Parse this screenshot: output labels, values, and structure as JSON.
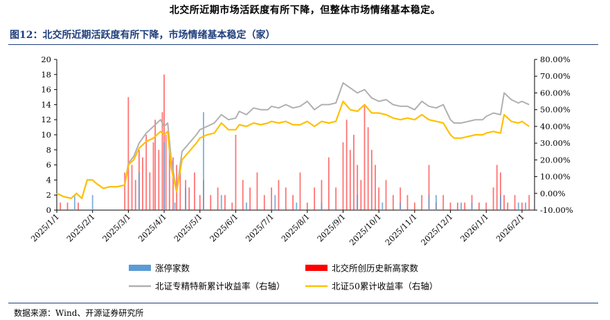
{
  "header": {
    "top_text": "北交所近期市场活跃度有所下降，但整体市场情绪基本稳定。",
    "figure_title": "图12：北交所近期活跃度有所下降，市场情绪基本稳定（家）",
    "source": "数据来源：Wind、开源证券研究所"
  },
  "colors": {
    "limit_up": "#5b9bd5",
    "new_high": "#ff0000",
    "specialized": "#b0b0b0",
    "bz50": "#ffc000",
    "title": "#1f3e7c"
  },
  "chart_data": {
    "type": "bar+line",
    "x_tick_labels": [
      "2025/1/1",
      "2025/2/1",
      "2025/3/1",
      "2025/4/1",
      "2025/5/1",
      "2025/6/1",
      "2025/7/1",
      "2025/8/1",
      "2025/9/1",
      "2025/10/1",
      "2025/11/1",
      "2025/12/1",
      "2026/1/1",
      "2026/2/1"
    ],
    "y_left": {
      "ylim": [
        0,
        20
      ],
      "ticks": [
        "0",
        "2",
        "4",
        "6",
        "8",
        "10",
        "12",
        "14",
        "16",
        "18",
        "20"
      ]
    },
    "y_right": {
      "ylim": [
        -10,
        80
      ],
      "ticks": [
        "-10.00%",
        "0.00%",
        "10.00%",
        "20.00%",
        "30.00%",
        "40.00%",
        "50.00%",
        "60.00%",
        "70.00%",
        "80.00%"
      ]
    },
    "legend": {
      "placement": "bottom",
      "items": [
        {
          "key": "limit_up",
          "label": "涨停家数",
          "symbol": "bar"
        },
        {
          "key": "new_high",
          "label": "北交所创历史新高家数",
          "symbol": "bar"
        },
        {
          "key": "specialized",
          "label": "北证专精特新累计收益率（右轴）",
          "symbol": "line"
        },
        {
          "key": "bz50",
          "label": "北证50累计收益率（右轴）",
          "symbol": "line"
        }
      ]
    },
    "series_lines": [
      {
        "key": "specialized",
        "x_month": [
          0,
          0.2,
          0.4,
          0.55,
          0.7,
          0.85,
          1.0,
          1.1,
          1.3,
          1.5,
          1.7,
          1.9,
          2.0,
          2.15,
          2.3,
          2.5,
          2.7,
          2.9,
          3.0,
          3.1,
          3.2,
          3.35,
          3.5,
          3.7,
          3.9,
          4.0,
          4.2,
          4.4,
          4.6,
          4.8,
          5.0,
          5.1,
          5.3,
          5.5,
          5.7,
          5.9,
          6.0,
          6.2,
          6.4,
          6.6,
          6.8,
          7.0,
          7.2,
          7.4,
          7.6,
          7.8,
          8.0,
          8.2,
          8.4,
          8.6,
          8.8,
          9.0,
          9.2,
          9.4,
          9.6,
          9.8,
          10.0,
          10.2,
          10.4,
          10.6,
          10.8,
          11.0,
          11.1,
          11.3,
          11.5,
          11.7,
          11.9,
          12.0,
          12.2,
          12.4,
          12.5,
          12.7,
          12.9,
          13.0,
          13.2
        ],
        "y_pct": [
          0,
          -2,
          -3,
          0,
          -3,
          8,
          8,
          6,
          3,
          4,
          4,
          5,
          18,
          22,
          30,
          36,
          40,
          44,
          40,
          42,
          20,
          1,
          25,
          30,
          35,
          38,
          40,
          42,
          47,
          44,
          45,
          49,
          47,
          51,
          50,
          50,
          52,
          51,
          53,
          51,
          52,
          55,
          50,
          53,
          53,
          54,
          66,
          63,
          60,
          62,
          57,
          55,
          56,
          53,
          52,
          52,
          50,
          55,
          52,
          51,
          53,
          44,
          42,
          42,
          43,
          44,
          44,
          46,
          48,
          47,
          60,
          56,
          54,
          55,
          53
        ]
      },
      {
        "key": "bz50",
        "x_month": [
          0,
          0.2,
          0.4,
          0.55,
          0.7,
          0.85,
          1.0,
          1.1,
          1.3,
          1.5,
          1.7,
          1.9,
          2.0,
          2.15,
          2.3,
          2.5,
          2.7,
          2.9,
          3.0,
          3.1,
          3.2,
          3.35,
          3.5,
          3.7,
          3.9,
          4.0,
          4.2,
          4.4,
          4.6,
          4.8,
          5.0,
          5.1,
          5.3,
          5.5,
          5.7,
          5.9,
          6.0,
          6.2,
          6.4,
          6.6,
          6.8,
          7.0,
          7.2,
          7.4,
          7.6,
          7.8,
          8.0,
          8.2,
          8.4,
          8.6,
          8.8,
          9.0,
          9.2,
          9.4,
          9.6,
          9.8,
          10.0,
          10.2,
          10.4,
          10.6,
          10.8,
          11.0,
          11.1,
          11.3,
          11.5,
          11.7,
          11.9,
          12.0,
          12.2,
          12.4,
          12.5,
          12.7,
          12.9,
          13.0,
          13.2
        ],
        "y_pct": [
          0,
          -2,
          -3,
          0,
          -3,
          8,
          8,
          6,
          3,
          4,
          4,
          5,
          17,
          20,
          27,
          31,
          33,
          37,
          35,
          37,
          15,
          1,
          20,
          25,
          30,
          33,
          35,
          36,
          42,
          38,
          38,
          41,
          40,
          42,
          41,
          42,
          43,
          42,
          43,
          41,
          41,
          43,
          40,
          43,
          42,
          43,
          55,
          50,
          49,
          53,
          48,
          48,
          47,
          45,
          44,
          45,
          44,
          47,
          44,
          43,
          42,
          35,
          33,
          33,
          34,
          35,
          35,
          36,
          37,
          36,
          47,
          43,
          42,
          43,
          40
        ]
      }
    ],
    "bars_new_high": {
      "x_month": [
        0.1,
        0.3,
        0.6,
        1.9,
        2.0,
        2.1,
        2.2,
        2.3,
        2.4,
        2.5,
        2.6,
        2.7,
        2.75,
        2.85,
        2.95,
        3.0,
        3.05,
        3.15,
        3.25,
        3.35,
        3.45,
        3.6,
        3.7,
        3.85,
        4.0,
        4.1,
        4.3,
        4.5,
        4.7,
        4.9,
        5.0,
        5.2,
        5.4,
        5.6,
        5.8,
        6.0,
        6.2,
        6.4,
        6.6,
        6.8,
        7.0,
        7.2,
        7.4,
        7.6,
        7.8,
        8.0,
        8.1,
        8.2,
        8.3,
        8.4,
        8.5,
        8.6,
        8.7,
        8.8,
        8.9,
        9.0,
        9.2,
        9.4,
        9.6,
        9.8,
        10.0,
        10.2,
        10.4,
        10.6,
        10.8,
        11.0,
        11.2,
        11.4,
        11.6,
        11.8,
        12.0,
        12.2,
        12.3,
        12.4,
        12.5,
        12.6,
        12.8,
        13.0,
        13.2
      ],
      "values": [
        1,
        1,
        1,
        5,
        15,
        6,
        4,
        8,
        7,
        10,
        5,
        9,
        12,
        8,
        13,
        18,
        10,
        8,
        7,
        6,
        5,
        4,
        3,
        5,
        2,
        4,
        2,
        3,
        2,
        1,
        10,
        4,
        3,
        5,
        2,
        3,
        4,
        3,
        2,
        5,
        1,
        3,
        4,
        7,
        3,
        9,
        12,
        8,
        10,
        6,
        4,
        14,
        11,
        8,
        6,
        3,
        4,
        2,
        3,
        2,
        1,
        2,
        6,
        1,
        2,
        1,
        1,
        1,
        2,
        1,
        1,
        3,
        6,
        5,
        2,
        1,
        2,
        1,
        2
      ]
    },
    "bars_limit_up": {
      "x_month": [
        0.5,
        1.0,
        2.3,
        3.0,
        3.3,
        3.6,
        4.1,
        4.6,
        5.3,
        6.1,
        6.7,
        7.4,
        8.4,
        9.1,
        9.6,
        10.4,
        10.6,
        11.3,
        11.6,
        12.4,
        12.9,
        13.1
      ],
      "values": [
        2,
        2,
        5,
        9,
        1,
        3,
        13,
        2,
        1,
        2,
        1,
        1,
        2,
        1,
        1,
        2,
        2,
        1,
        1,
        2,
        1,
        1
      ]
    }
  }
}
